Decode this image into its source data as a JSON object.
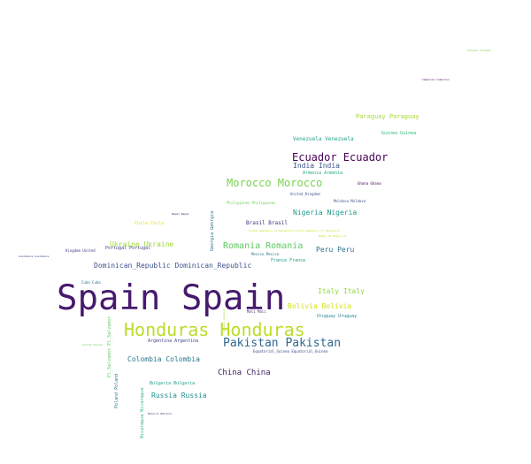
{
  "words": [
    {
      "id": "spain",
      "text": "Spain Spain",
      "color": "#471a6e"
    },
    {
      "id": "honduras",
      "text": "Honduras Honduras",
      "color": "#b9de28"
    },
    {
      "id": "pakistan",
      "text": "Pakistan Pakistan",
      "color": "#31688e"
    },
    {
      "id": "ecuador",
      "text": "Ecuador Ecuador",
      "color": "#440154"
    },
    {
      "id": "morocco",
      "text": "Morocco Morocco",
      "color": "#7ad151"
    },
    {
      "id": "romania",
      "text": "Romania Romania",
      "color": "#5ec962"
    },
    {
      "id": "china",
      "text": "China China",
      "color": "#3e1f60"
    },
    {
      "id": "colombia",
      "text": "Colombia Colombia",
      "color": "#2a788e"
    },
    {
      "id": "dominican",
      "text": "Dominican_Republic Dominican_Republic",
      "color": "#3b528b"
    },
    {
      "id": "ukraine",
      "text": "Ukraine Ukraine",
      "color": "#a0da39"
    },
    {
      "id": "russia",
      "text": "Russia Russia",
      "color": "#21918c"
    },
    {
      "id": "italy",
      "text": "Italy Italy",
      "color": "#95d840"
    },
    {
      "id": "bolivia",
      "text": "Bolivia Bolivia",
      "color": "#d5e21a"
    },
    {
      "id": "nigeria",
      "text": "Nigeria Nigeria",
      "color": "#1f9a8a"
    },
    {
      "id": "peru",
      "text": "Peru Peru",
      "color": "#2c728e"
    },
    {
      "id": "paraguay",
      "text": "Paraguay Paraguay",
      "color": "#a8db34"
    },
    {
      "id": "india",
      "text": "India India",
      "color": "#3b528b"
    },
    {
      "id": "venezuela",
      "text": "Venezuela Venezuela",
      "color": "#20a386"
    },
    {
      "id": "brasil",
      "text": "Brasil Brasil",
      "color": "#472d7b"
    },
    {
      "id": "armenia",
      "text": "Armenia Armenia",
      "color": "#22a884"
    },
    {
      "id": "guinea",
      "text": "Guinea Guinea",
      "color": "#35b779"
    },
    {
      "id": "chile",
      "text": "Chile Chile",
      "color": "#e5e419"
    },
    {
      "id": "portugal",
      "text": "Portugal Portugal",
      "color": "#414487"
    },
    {
      "id": "france",
      "text": "France France",
      "color": "#1fa187"
    },
    {
      "id": "uruguay",
      "text": "Uruguay Uruguay",
      "color": "#25848e"
    },
    {
      "id": "bulgaria",
      "text": "Bulgaria Bulgaria",
      "color": "#1f9e89"
    },
    {
      "id": "argentina",
      "text": "Argentina Argentina",
      "color": "#404688"
    },
    {
      "id": "philippines",
      "text": "Philippines Philippines",
      "color": "#6ece58"
    },
    {
      "id": "mexico",
      "text": "Mexico Mexico",
      "color": "#2a788e"
    },
    {
      "id": "moldova",
      "text": "Moldova Moldova",
      "color": "#3b528b"
    },
    {
      "id": "equatorial",
      "text": "Equatorial_Guinea Equatorial_Guinea",
      "color": "#3e4989"
    },
    {
      "id": "cuba",
      "text": "Cuba Cuba",
      "color": "#2c728e"
    },
    {
      "id": "mali",
      "text": "Mali Mali",
      "color": "#481f70"
    },
    {
      "id": "kingdom",
      "text": "Kingdom United",
      "color": "#46337e"
    },
    {
      "id": "uk",
      "text": "United_Kingdom",
      "color": "#39568c"
    },
    {
      "id": "ghana",
      "text": "Ghana Ghana",
      "color": "#440154"
    },
    {
      "id": "nepal",
      "text": "Nepal Nepal",
      "color": "#482475"
    },
    {
      "id": "guatemala",
      "text": "Guatemala Guatemala",
      "color": "#3e4a89"
    },
    {
      "id": "guinea_bissau",
      "text": "Guinea Bissau",
      "color": "#6ece58"
    },
    {
      "id": "belarus",
      "text": "Belarus Belarus",
      "color": "#482878"
    },
    {
      "id": "cameroon",
      "text": "Cameroon Cameroon",
      "color": "#440154"
    },
    {
      "id": "senegal",
      "text": "Senegal Senegal",
      "color": "#7ad151"
    },
    {
      "id": "nigeria_small",
      "text": "Niger Le Niger Le",
      "color": "#b5de2b"
    },
    {
      "id": "macedonia",
      "text": "Former_Republic_of_Macedonia Former_Republic_of_Macedonia",
      "color": "#c2df23"
    },
    {
      "id": "georgia",
      "text": "Georgia Georgia",
      "color": "#2d708e"
    },
    {
      "id": "el_salvador",
      "text": "El_Salvador El_Salvador",
      "color": "#5ec962"
    },
    {
      "id": "poland",
      "text": "Poland Poland",
      "color": "#2a788e"
    },
    {
      "id": "nicaragua",
      "text": "Nicaragua Nicaragua",
      "color": "#35b779"
    },
    {
      "id": "lebanon",
      "text": "Lebanon Lebanon",
      "color": "#a0da39"
    }
  ]
}
